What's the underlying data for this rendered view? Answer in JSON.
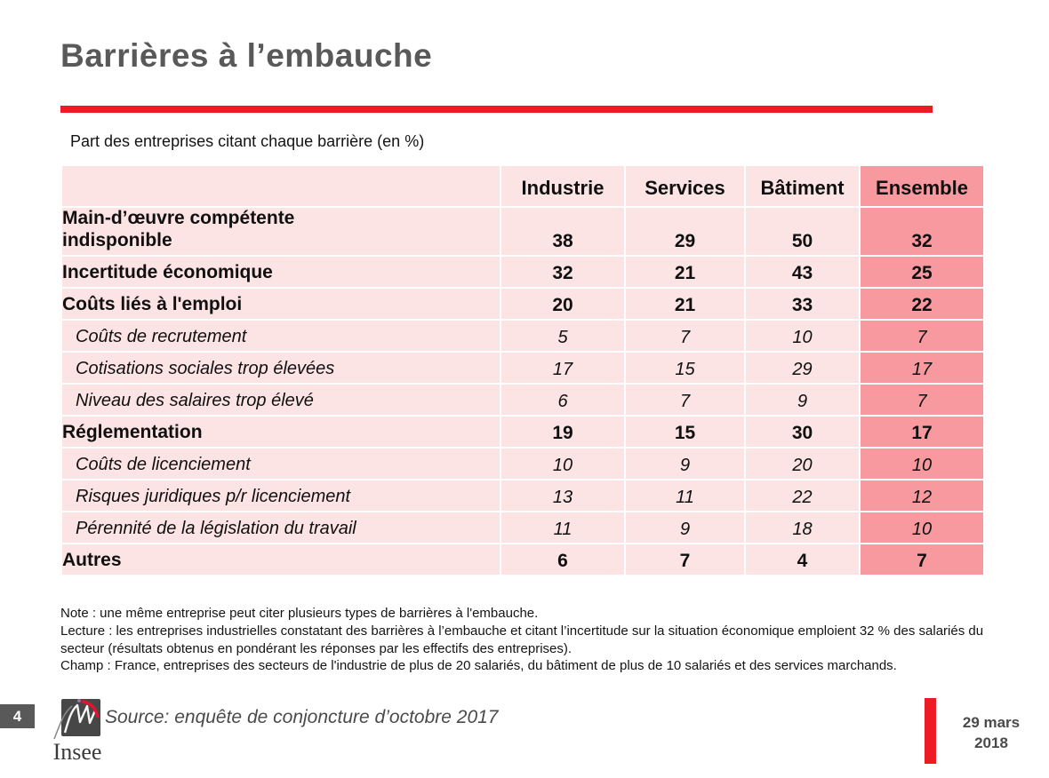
{
  "page": {
    "title": "Barrières à l’embauche",
    "subtitle": "Part des entreprises citant chaque barrière (en %)"
  },
  "chart_data": {
    "type": "table",
    "title": "Part des entreprises citant chaque barrière (en %)",
    "columns": [
      "",
      "Industrie",
      "Services",
      "Bâtiment",
      "Ensemble"
    ],
    "highlight_column": "Ensemble",
    "rows": [
      {
        "label": "Main-d’œuvre compétente\nindisponible",
        "style": "bold",
        "values": [
          38,
          29,
          50,
          32
        ]
      },
      {
        "label": "Incertitude économique",
        "style": "bold",
        "values": [
          32,
          21,
          43,
          25
        ]
      },
      {
        "label": "Coûts liés à l'emploi",
        "style": "bold",
        "values": [
          20,
          21,
          33,
          22
        ]
      },
      {
        "label": "Coûts de recrutement",
        "style": "sub",
        "values": [
          5,
          7,
          10,
          7
        ]
      },
      {
        "label": "Cotisations sociales trop élevées",
        "style": "sub",
        "values": [
          17,
          15,
          29,
          17
        ]
      },
      {
        "label": "Niveau des salaires trop élevé",
        "style": "sub",
        "values": [
          6,
          7,
          9,
          7
        ]
      },
      {
        "label": "Réglementation",
        "style": "bold",
        "values": [
          19,
          15,
          30,
          17
        ]
      },
      {
        "label": "Coûts de licenciement",
        "style": "sub",
        "values": [
          10,
          9,
          20,
          10
        ]
      },
      {
        "label": "Risques juridiques p/r licenciement",
        "style": "sub",
        "values": [
          13,
          11,
          22,
          12
        ]
      },
      {
        "label": "Pérennité de la législation du travail",
        "style": "sub",
        "values": [
          11,
          9,
          18,
          10
        ]
      },
      {
        "label": "Autres",
        "style": "bold",
        "values": [
          6,
          7,
          4,
          7
        ]
      }
    ]
  },
  "notes": [
    "Note : une même entreprise peut citer plusieurs types de barrières à l'embauche.",
    "Lecture : les entreprises industrielles constatant des barrières à l’embauche et citant l’incertitude sur la situation économique emploient 32 % des salariés du secteur (résultats obtenus en pondérant les réponses par les effectifs des entreprises).",
    "Champ : France, entreprises des secteurs de l'industrie de plus de 20 salariés, du bâtiment de plus de 10 salariés et des services marchands."
  ],
  "footer": {
    "page_number": "4",
    "logo_text": "Insee",
    "source": "Source: enquête de conjoncture d’octobre 2017",
    "date_line1": "29 mars",
    "date_line2": "2018"
  },
  "colors": {
    "accent_red": "#ED1C24",
    "title_gray": "#595959",
    "cell_pink": "#FCE4E4",
    "cell_salmon": "#F8999F"
  }
}
